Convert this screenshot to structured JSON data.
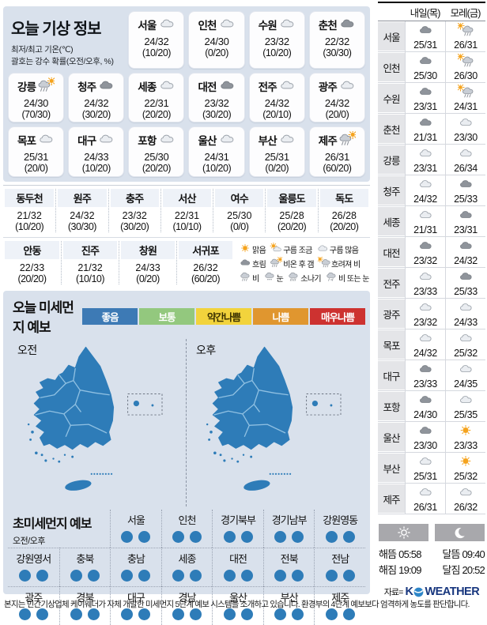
{
  "colors": {
    "panel_bg": "#d9e1ec",
    "map_blue": "#2e7cb8",
    "logo_blue": "#17367e",
    "level_colors": {
      "good": "#2e7cb8"
    }
  },
  "today": {
    "title": "오늘 기상 정보",
    "subtitle1": "최저/최고 기온(℃)",
    "subtitle2": "괄호는 강수 확률(오전/오후, %)",
    "cards": [
      {
        "city": "서울",
        "icon": "cloud-light",
        "temp": "24/32",
        "rain": "(10/20)"
      },
      {
        "city": "인천",
        "icon": "cloud-light",
        "temp": "24/30",
        "rain": "(0/20)"
      },
      {
        "city": "수원",
        "icon": "cloud-light",
        "temp": "23/32",
        "rain": "(10/20)"
      },
      {
        "city": "춘천",
        "icon": "cloud-dark",
        "temp": "22/32",
        "rain": "(30/30)"
      },
      {
        "city": "강릉",
        "icon": "rain-sun",
        "temp": "24/30",
        "rain": "(70/30)"
      },
      {
        "city": "청주",
        "icon": "cloud-dark",
        "temp": "24/32",
        "rain": "(30/20)"
      },
      {
        "city": "세종",
        "icon": "cloud-light",
        "temp": "22/31",
        "rain": "(20/20)"
      },
      {
        "city": "대전",
        "icon": "cloud-dark",
        "temp": "23/32",
        "rain": "(30/20)"
      },
      {
        "city": "전주",
        "icon": "cloud-light",
        "temp": "24/32",
        "rain": "(20/10)"
      },
      {
        "city": "광주",
        "icon": "cloud-light",
        "temp": "24/32",
        "rain": "(20/0)"
      },
      {
        "city": "목포",
        "icon": "cloud-light",
        "temp": "25/31",
        "rain": "(20/0)"
      },
      {
        "city": "대구",
        "icon": "cloud-light",
        "temp": "24/33",
        "rain": "(10/20)"
      },
      {
        "city": "포항",
        "icon": "cloud-light",
        "temp": "25/30",
        "rain": "(20/20)"
      },
      {
        "city": "울산",
        "icon": "cloud-light",
        "temp": "24/31",
        "rain": "(10/20)"
      },
      {
        "city": "부산",
        "icon": "cloud-light",
        "temp": "25/31",
        "rain": "(0/20)"
      },
      {
        "city": "제주",
        "icon": "rain-sun",
        "temp": "26/31",
        "rain": "(60/20)"
      }
    ]
  },
  "mid_table": {
    "row1": [
      {
        "city": "동두천",
        "temp": "21/32",
        "rain": "(10/20)"
      },
      {
        "city": "원주",
        "temp": "24/32",
        "rain": "(30/30)"
      },
      {
        "city": "충주",
        "temp": "23/32",
        "rain": "(30/20)"
      },
      {
        "city": "서산",
        "temp": "22/31",
        "rain": "(10/10)"
      },
      {
        "city": "여수",
        "temp": "25/30",
        "rain": "(0/0)"
      },
      {
        "city": "울릉도",
        "temp": "25/28",
        "rain": "(20/20)"
      },
      {
        "city": "독도",
        "temp": "26/28",
        "rain": "(20/20)"
      }
    ],
    "row2": [
      {
        "city": "안동",
        "temp": "22/33",
        "rain": "(20/20)"
      },
      {
        "city": "진주",
        "temp": "21/32",
        "rain": "(10/10)"
      },
      {
        "city": "창원",
        "temp": "24/33",
        "rain": "(0/20)"
      },
      {
        "city": "서귀포",
        "temp": "26/32",
        "rain": "(60/20)"
      }
    ]
  },
  "weather_legend": {
    "rows": [
      [
        {
          "icon": "sun",
          "label": "맑음"
        },
        {
          "icon": "sun-cloud",
          "label": "구름 조금"
        },
        {
          "icon": "cloud-light",
          "label": "구름 많음"
        }
      ],
      [
        {
          "icon": "cloud-dark",
          "label": "흐림"
        },
        {
          "icon": "rain-sun",
          "label": "비온 후 갬"
        },
        {
          "icon": "sun-rain",
          "label": "흐려져 비"
        }
      ],
      [
        {
          "icon": "rain",
          "label": "비"
        },
        {
          "icon": "snow",
          "label": "눈"
        },
        {
          "icon": "shower",
          "label": "소나기"
        },
        {
          "icon": "rain-snow",
          "label": "비 또는 눈"
        }
      ]
    ]
  },
  "dust": {
    "title": "오늘 미세먼지 예보",
    "legend": [
      {
        "label": "좋음",
        "bg": "#3d7ab5",
        "fg": "#ffffff"
      },
      {
        "label": "보통",
        "bg": "#93c87e",
        "fg": "#ffffff"
      },
      {
        "label": "약간나쁨",
        "bg": "#f2d33c",
        "fg": "#3a3000"
      },
      {
        "label": "나쁨",
        "bg": "#e0962f",
        "fg": "#ffffff"
      },
      {
        "label": "매우나쁨",
        "bg": "#cd3230",
        "fg": "#ffffff"
      }
    ],
    "am_label": "오전",
    "pm_label": "오후"
  },
  "ultrafine": {
    "title": "초미세먼지 예보",
    "subtitle": "오전/오후",
    "rows": [
      [
        {
          "name": "서울",
          "levels": [
            "good",
            "good"
          ]
        },
        {
          "name": "인천",
          "levels": [
            "good",
            "good"
          ]
        },
        {
          "name": "경기북부",
          "levels": [
            "good",
            "good"
          ]
        },
        {
          "name": "경기남부",
          "levels": [
            "good",
            "good"
          ]
        },
        {
          "name": "강원영동",
          "levels": [
            "good",
            "good"
          ]
        }
      ],
      [
        {
          "name": "강원영서",
          "levels": [
            "good",
            "good"
          ]
        },
        {
          "name": "충북",
          "levels": [
            "good",
            "good"
          ]
        },
        {
          "name": "충남",
          "levels": [
            "good",
            "good"
          ]
        },
        {
          "name": "세종",
          "levels": [
            "good",
            "good"
          ]
        },
        {
          "name": "대전",
          "levels": [
            "good",
            "good"
          ]
        },
        {
          "name": "전북",
          "levels": [
            "good",
            "good"
          ]
        },
        {
          "name": "전남",
          "levels": [
            "good",
            "good"
          ]
        }
      ],
      [
        {
          "name": "광주",
          "levels": [
            "good",
            "good"
          ]
        },
        {
          "name": "경북",
          "levels": [
            "good",
            "good"
          ]
        },
        {
          "name": "대구",
          "levels": [
            "good",
            "good"
          ]
        },
        {
          "name": "경남",
          "levels": [
            "good",
            "good"
          ]
        },
        {
          "name": "울산",
          "levels": [
            "good",
            "good"
          ]
        },
        {
          "name": "부산",
          "levels": [
            "good",
            "good"
          ]
        },
        {
          "name": "제주",
          "levels": [
            "good",
            "good"
          ]
        }
      ]
    ]
  },
  "sidebar": {
    "col1": "내일(목)",
    "col2": "모레(금)",
    "rows": [
      {
        "city": "서울",
        "d1": {
          "icon": "cloud-dark",
          "temp": "25/31"
        },
        "d2": {
          "icon": "sun-rain",
          "temp": "26/31"
        }
      },
      {
        "city": "인천",
        "d1": {
          "icon": "cloud-dark",
          "temp": "25/30"
        },
        "d2": {
          "icon": "sun-rain",
          "temp": "26/30"
        }
      },
      {
        "city": "수원",
        "d1": {
          "icon": "cloud-dark",
          "temp": "23/31"
        },
        "d2": {
          "icon": "sun-rain",
          "temp": "24/31"
        }
      },
      {
        "city": "춘천",
        "d1": {
          "icon": "cloud-dark",
          "temp": "21/31"
        },
        "d2": {
          "icon": "cloud-light",
          "temp": "23/30"
        }
      },
      {
        "city": "강릉",
        "d1": {
          "icon": "cloud-light",
          "temp": "23/31"
        },
        "d2": {
          "icon": "cloud-light",
          "temp": "26/34"
        }
      },
      {
        "city": "청주",
        "d1": {
          "icon": "cloud-light",
          "temp": "24/32"
        },
        "d2": {
          "icon": "cloud-dark",
          "temp": "25/33"
        }
      },
      {
        "city": "세종",
        "d1": {
          "icon": "cloud-light",
          "temp": "21/31"
        },
        "d2": {
          "icon": "cloud-dark",
          "temp": "23/31"
        }
      },
      {
        "city": "대전",
        "d1": {
          "icon": "cloud-dark",
          "temp": "23/32"
        },
        "d2": {
          "icon": "cloud-dark",
          "temp": "24/32"
        }
      },
      {
        "city": "전주",
        "d1": {
          "icon": "cloud-light",
          "temp": "23/33"
        },
        "d2": {
          "icon": "cloud-dark",
          "temp": "25/33"
        }
      },
      {
        "city": "광주",
        "d1": {
          "icon": "cloud-light",
          "temp": "23/32"
        },
        "d2": {
          "icon": "cloud-light",
          "temp": "24/33"
        }
      },
      {
        "city": "목포",
        "d1": {
          "icon": "cloud-light",
          "temp": "24/32"
        },
        "d2": {
          "icon": "cloud-light",
          "temp": "25/32"
        }
      },
      {
        "city": "대구",
        "d1": {
          "icon": "cloud-dark",
          "temp": "23/33"
        },
        "d2": {
          "icon": "cloud-light",
          "temp": "24/35"
        }
      },
      {
        "city": "포항",
        "d1": {
          "icon": "cloud-dark",
          "temp": "24/30"
        },
        "d2": {
          "icon": "cloud-light",
          "temp": "25/35"
        }
      },
      {
        "city": "울산",
        "d1": {
          "icon": "cloud-dark",
          "temp": "23/30"
        },
        "d2": {
          "icon": "sun",
          "temp": "23/33"
        }
      },
      {
        "city": "부산",
        "d1": {
          "icon": "cloud-light",
          "temp": "25/31"
        },
        "d2": {
          "icon": "sun",
          "temp": "25/32"
        }
      },
      {
        "city": "제주",
        "d1": {
          "icon": "cloud-light",
          "temp": "26/31"
        },
        "d2": {
          "icon": "cloud-light",
          "temp": "26/32"
        }
      }
    ],
    "sun_rise_label": "해뜸",
    "sun_rise": "05:58",
    "sun_set_label": "해짐",
    "sun_set": "19:09",
    "moon_rise_label": "달뜸",
    "moon_rise": "09:40",
    "moon_set_label": "달짐",
    "moon_set": "20:52",
    "source_prefix": "자료=",
    "brand_k": "K",
    "brand_rest": "WEATHER"
  },
  "footer": "본지는 민간기상업체 케이웨더가 자체 개발한 미세먼지 5단계 예보 시스템을 소개하고 있습니다. 환경부의 4단계 예보보다 엄격하게 농도를 판단합니다."
}
